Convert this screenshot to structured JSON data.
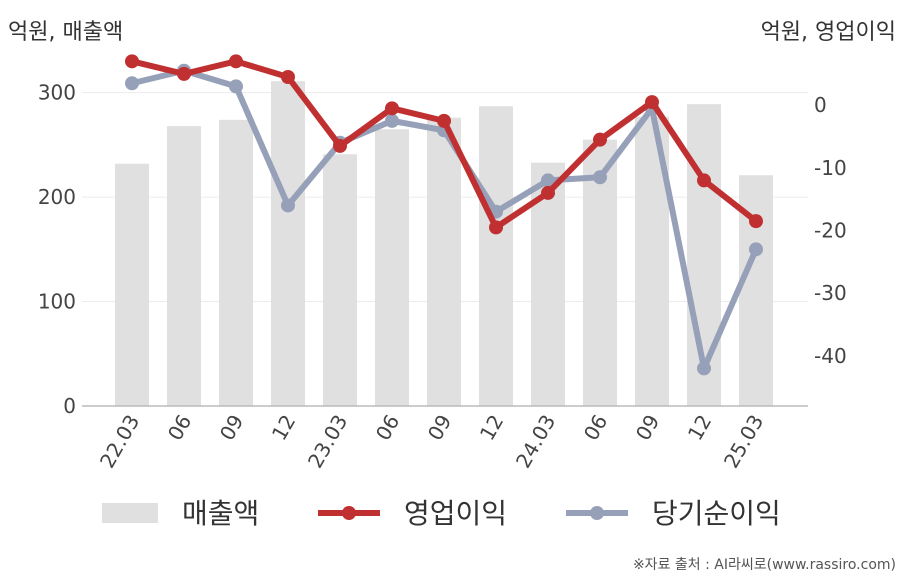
{
  "units": {
    "left": "억원, 매출액",
    "right": "억원, 영업이익"
  },
  "source": "※자료 출처 : AI라씨로(www.rassiro.com)",
  "chart_data": {
    "type": "bar+line",
    "categories": [
      "22.03",
      "06",
      "09",
      "12",
      "23.03",
      "06",
      "09",
      "12",
      "24.03",
      "06",
      "09",
      "12",
      "25.03"
    ],
    "left_axis": {
      "ylim": [
        0,
        360
      ],
      "ticks": [
        0,
        100,
        200,
        300
      ]
    },
    "right_axis": {
      "ylim": [
        -48,
        12
      ],
      "ticks": [
        0,
        -10,
        -20,
        -30,
        -40
      ]
    },
    "series": [
      {
        "name": "매출액",
        "type": "bar",
        "axis": "left",
        "color": "#e0e0e0",
        "values": [
          232,
          268,
          274,
          311,
          241,
          265,
          276,
          287,
          233,
          255,
          277,
          289,
          221
        ]
      },
      {
        "name": "영업이익",
        "type": "line",
        "axis": "right",
        "color": "#c03030",
        "values": [
          7,
          5,
          7,
          4.5,
          -6.5,
          -0.5,
          -2.5,
          -19.5,
          -14,
          -5.5,
          0.5,
          -12,
          -18.5
        ]
      },
      {
        "name": "당기순이익",
        "type": "line",
        "axis": "right",
        "color": "#96a0b8",
        "values": [
          3.5,
          5.5,
          3,
          -16,
          -6,
          -2.5,
          -4,
          -17,
          -12,
          -11.5,
          -0.5,
          -42,
          -23
        ]
      }
    ],
    "grid": true,
    "legend": "bottom"
  }
}
